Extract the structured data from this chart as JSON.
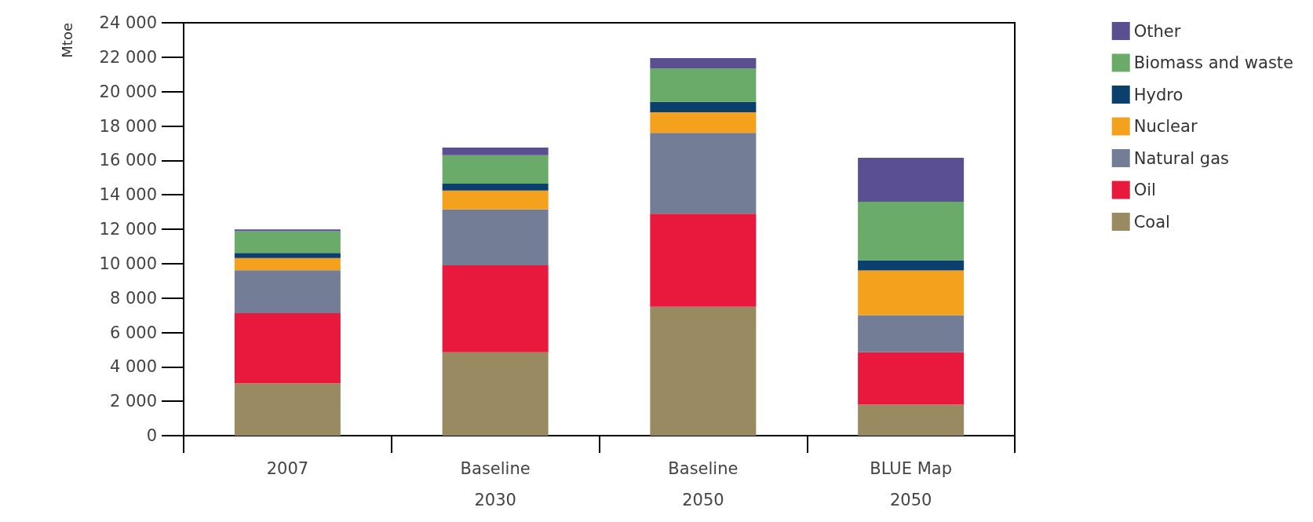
{
  "chart_data": {
    "type": "bar",
    "stacked": true,
    "ylabel": "Mtoe",
    "categories": [
      "2007",
      "Baseline\n2030",
      "Baseline\n2050",
      "BLUE Map\n2050"
    ],
    "series": [
      {
        "name": "Coal",
        "color": "#9a8a62",
        "values": [
          3050,
          4850,
          7500,
          1800
        ]
      },
      {
        "name": "Oil",
        "color": "#e8193c",
        "values": [
          4070,
          5050,
          5400,
          3050
        ]
      },
      {
        "name": "Natural gas",
        "color": "#737d96",
        "values": [
          2500,
          3250,
          4700,
          2150
        ]
      },
      {
        "name": "Nuclear",
        "color": "#f4a11e",
        "values": [
          700,
          1100,
          1200,
          2600
        ]
      },
      {
        "name": "Hydro",
        "color": "#0b3f6e",
        "values": [
          300,
          400,
          600,
          600
        ]
      },
      {
        "name": "Biomass and waste",
        "color": "#6aab6a",
        "values": [
          1270,
          1650,
          1950,
          3400
        ]
      },
      {
        "name": "Other",
        "color": "#5a5091",
        "values": [
          100,
          450,
          600,
          2550
        ]
      }
    ],
    "ylim": [
      0,
      24000
    ],
    "yticks": [
      {
        "value": 0,
        "label": "0"
      },
      {
        "value": 2000,
        "label": "2 000"
      },
      {
        "value": 4000,
        "label": "4 000"
      },
      {
        "value": 6000,
        "label": "6 000"
      },
      {
        "value": 8000,
        "label": "8 000"
      },
      {
        "value": 10000,
        "label": "10 000"
      },
      {
        "value": 12000,
        "label": "12 000"
      },
      {
        "value": 14000,
        "label": "14 000"
      },
      {
        "value": 16000,
        "label": "16 000"
      },
      {
        "value": 18000,
        "label": "18 000"
      },
      {
        "value": 20000,
        "label": "20 000"
      },
      {
        "value": 22000,
        "label": "22 000"
      },
      {
        "value": 24000,
        "label": "24 000"
      }
    ],
    "grid": false,
    "legend": "right"
  }
}
